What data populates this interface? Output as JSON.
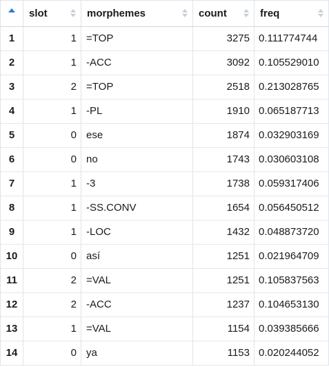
{
  "table": {
    "columns": [
      {
        "label": ""
      },
      {
        "label": "slot"
      },
      {
        "label": "morphemes"
      },
      {
        "label": "count"
      },
      {
        "label": "freq"
      }
    ],
    "rows": [
      {
        "idx": "1",
        "slot": "1",
        "morphemes": "=TOP",
        "count": "3275",
        "freq": "0.111774744"
      },
      {
        "idx": "2",
        "slot": "1",
        "morphemes": "-ACC",
        "count": "3092",
        "freq": "0.105529010"
      },
      {
        "idx": "3",
        "slot": "2",
        "morphemes": "=TOP",
        "count": "2518",
        "freq": "0.213028765"
      },
      {
        "idx": "4",
        "slot": "1",
        "morphemes": "-PL",
        "count": "1910",
        "freq": "0.065187713"
      },
      {
        "idx": "5",
        "slot": "0",
        "morphemes": "ese",
        "count": "1874",
        "freq": "0.032903169"
      },
      {
        "idx": "6",
        "slot": "0",
        "morphemes": "no",
        "count": "1743",
        "freq": "0.030603108"
      },
      {
        "idx": "7",
        "slot": "1",
        "morphemes": "-3",
        "count": "1738",
        "freq": "0.059317406"
      },
      {
        "idx": "8",
        "slot": "1",
        "morphemes": "-SS.CONV",
        "count": "1654",
        "freq": "0.056450512"
      },
      {
        "idx": "9",
        "slot": "1",
        "morphemes": "-LOC",
        "count": "1432",
        "freq": "0.048873720"
      },
      {
        "idx": "10",
        "slot": "0",
        "morphemes": "así",
        "count": "1251",
        "freq": "0.021964709"
      },
      {
        "idx": "11",
        "slot": "2",
        "morphemes": "=VAL",
        "count": "1251",
        "freq": "0.105837563"
      },
      {
        "idx": "12",
        "slot": "2",
        "morphemes": "-ACC",
        "count": "1237",
        "freq": "0.104653130"
      },
      {
        "idx": "13",
        "slot": "1",
        "morphemes": "=VAL",
        "count": "1154",
        "freq": "0.039385666"
      },
      {
        "idx": "14",
        "slot": "0",
        "morphemes": "ya",
        "count": "1153",
        "freq": "0.020244052"
      }
    ]
  },
  "colors": {
    "sort_accent": "#2f7ad6",
    "grid_line": "#dfe3ea",
    "sort_icon": "#c8ced8"
  },
  "icons": {
    "index_sort": "sort-ascending-icon",
    "column_sort": "sort-toggle-icon"
  }
}
